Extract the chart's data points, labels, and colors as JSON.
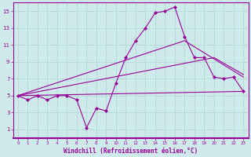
{
  "xlabel": "Windchill (Refroidissement éolien,°C)",
  "bg_color": "#ceeaea",
  "line_color": "#990099",
  "grid_color": "#b0d8d8",
  "xlim": [
    -0.5,
    23.5
  ],
  "ylim": [
    0,
    16
  ],
  "xticks": [
    0,
    1,
    2,
    3,
    4,
    5,
    6,
    7,
    8,
    9,
    10,
    11,
    12,
    13,
    14,
    15,
    16,
    17,
    18,
    19,
    20,
    21,
    22,
    23
  ],
  "yticks": [
    1,
    3,
    5,
    7,
    9,
    11,
    13,
    15
  ],
  "series1_x": [
    0,
    1,
    2,
    3,
    4,
    5,
    6,
    7,
    8,
    9,
    10,
    11,
    12,
    13,
    14,
    15,
    16,
    17,
    18,
    19,
    20,
    21,
    22,
    23
  ],
  "series1_y": [
    5.0,
    4.5,
    5.0,
    4.5,
    5.0,
    5.0,
    4.5,
    1.2,
    3.5,
    3.2,
    6.5,
    9.5,
    11.5,
    13.0,
    14.8,
    15.0,
    15.5,
    12.0,
    9.5,
    9.5,
    7.2,
    7.0,
    7.2,
    5.5
  ],
  "series2_x": [
    0,
    23
  ],
  "series2_y": [
    5.0,
    5.5
  ],
  "series3_x": [
    0,
    17,
    23
  ],
  "series3_y": [
    5.0,
    11.5,
    7.2
  ],
  "series4_x": [
    0,
    20,
    23
  ],
  "series4_y": [
    5.0,
    9.5,
    7.5
  ]
}
